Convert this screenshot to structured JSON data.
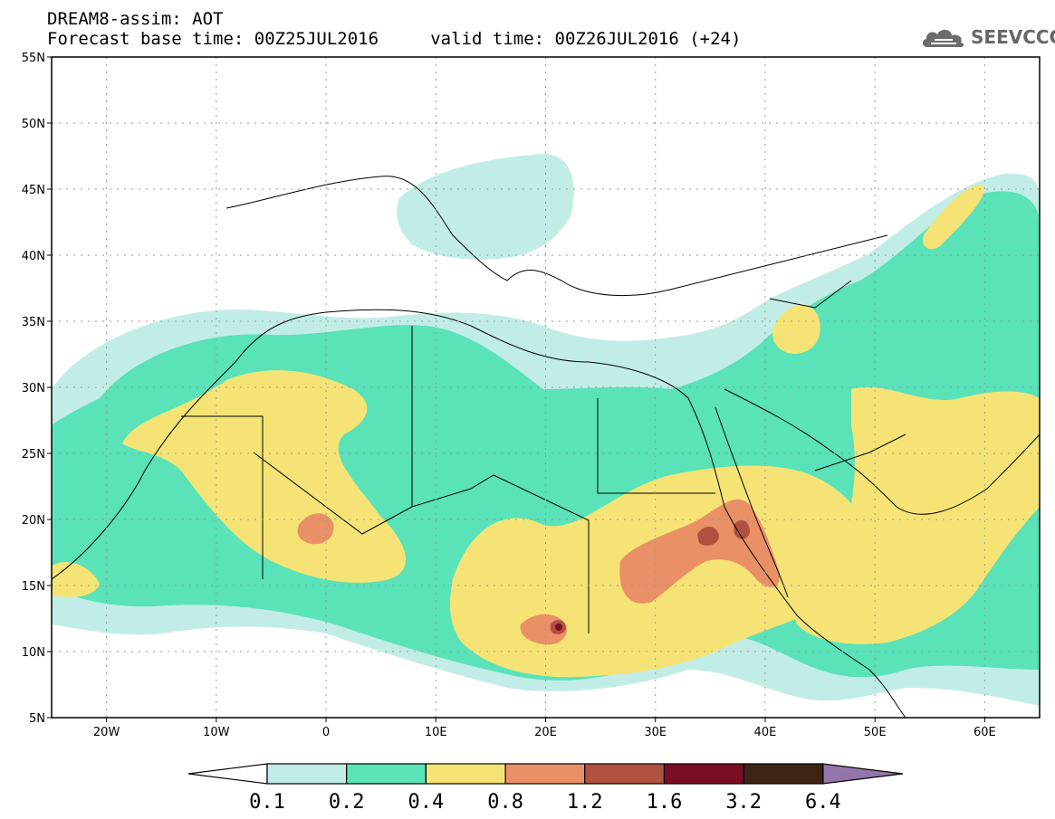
{
  "header": {
    "title": "DREAM8-assim: AOT",
    "forecast_line": "Forecast base time: 00Z25JUL2016     valid time: 00Z26JUL2016 (+24)"
  },
  "logo": {
    "text": "SEEVCCC",
    "icon": "cloud-icon"
  },
  "map": {
    "lat_labels": [
      "55N",
      "50N",
      "45N",
      "40N",
      "35N",
      "30N",
      "25N",
      "20N",
      "15N",
      "10N",
      "5N"
    ],
    "lon_labels": [
      "20W",
      "10W",
      "0",
      "10E",
      "20E",
      "30E",
      "40E",
      "50E",
      "60E"
    ],
    "lon_range": [
      -25,
      65
    ],
    "lat_range": [
      5,
      55
    ]
  },
  "colorbar": {
    "labels": [
      "0.1",
      "0.2",
      "0.4",
      "0.8",
      "1.2",
      "1.6",
      "3.2",
      "6.4"
    ],
    "colors": [
      "#c2ede7",
      "#5ae2b8",
      "#f5e475",
      "#e99066",
      "#b05041",
      "#7a0f24",
      "#3d2414",
      "#9475a9"
    ]
  }
}
